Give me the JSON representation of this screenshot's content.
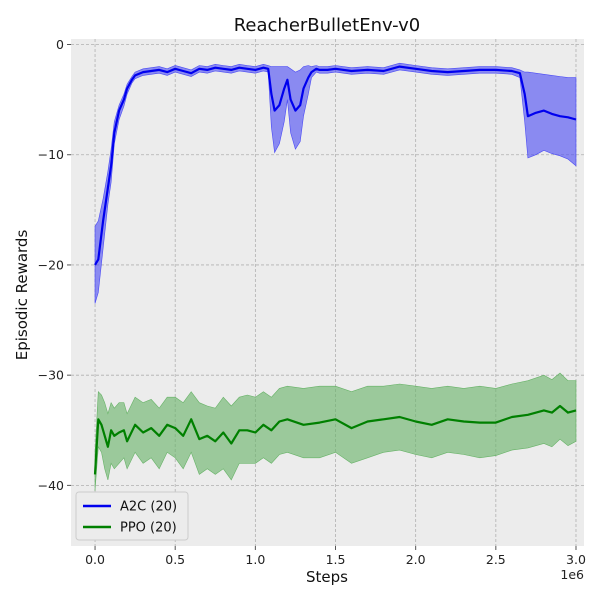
{
  "chart_data": {
    "type": "line",
    "title": "ReacherBulletEnv-v0",
    "xlabel": "Steps",
    "ylabel": "Episodic Rewards",
    "x_multiplier_label": "1e6",
    "xlim": [
      -0.15,
      3.05
    ],
    "ylim": [
      -45.5,
      0.5
    ],
    "x_ticks": [
      0.0,
      0.5,
      1.0,
      1.5,
      2.0,
      2.5,
      3.0
    ],
    "x_tick_labels": [
      "0.0",
      "0.5",
      "1.0",
      "1.5",
      "2.0",
      "2.5",
      "3.0"
    ],
    "y_ticks": [
      0,
      -10,
      -20,
      -30,
      -40
    ],
    "y_tick_labels": [
      "0",
      "−10",
      "−20",
      "−30",
      "−40"
    ],
    "grid": true,
    "legend_position": "lower-left",
    "colors": {
      "background": "#ececec",
      "grid": "#b0b0b0"
    },
    "series": [
      {
        "name": "A2C (20)",
        "color": "#0000ee",
        "fill_color": "#4a4af5",
        "x": [
          0.0,
          0.02,
          0.05,
          0.08,
          0.1,
          0.12,
          0.15,
          0.18,
          0.2,
          0.23,
          0.25,
          0.3,
          0.35,
          0.4,
          0.45,
          0.5,
          0.55,
          0.6,
          0.65,
          0.7,
          0.75,
          0.8,
          0.85,
          0.9,
          0.95,
          1.0,
          1.05,
          1.08,
          1.1,
          1.12,
          1.15,
          1.18,
          1.2,
          1.22,
          1.25,
          1.28,
          1.3,
          1.33,
          1.35,
          1.38,
          1.4,
          1.45,
          1.5,
          1.6,
          1.7,
          1.8,
          1.9,
          2.0,
          2.1,
          2.2,
          2.3,
          2.4,
          2.5,
          2.6,
          2.65,
          2.68,
          2.7,
          2.75,
          2.8,
          2.85,
          2.9,
          2.95,
          3.0
        ],
        "y": [
          -20.0,
          -19.5,
          -16.0,
          -13.0,
          -11.0,
          -8.0,
          -6.0,
          -5.0,
          -4.0,
          -3.2,
          -2.8,
          -2.5,
          -2.4,
          -2.3,
          -2.5,
          -2.2,
          -2.4,
          -2.6,
          -2.2,
          -2.3,
          -2.1,
          -2.2,
          -2.3,
          -2.1,
          -2.2,
          -2.3,
          -2.1,
          -2.2,
          -4.5,
          -6.0,
          -5.5,
          -4.0,
          -3.2,
          -5.0,
          -6.0,
          -5.5,
          -4.0,
          -3.0,
          -2.5,
          -2.2,
          -2.3,
          -2.3,
          -2.2,
          -2.4,
          -2.3,
          -2.4,
          -2.0,
          -2.2,
          -2.4,
          -2.5,
          -2.4,
          -2.3,
          -2.3,
          -2.4,
          -2.6,
          -4.5,
          -6.5,
          -6.2,
          -6.0,
          -6.3,
          -6.5,
          -6.6,
          -6.8
        ],
        "upper": [
          -16.5,
          -16.0,
          -14.0,
          -11.5,
          -9.5,
          -7.0,
          -5.5,
          -4.5,
          -3.6,
          -2.9,
          -2.5,
          -2.2,
          -2.1,
          -2.0,
          -2.2,
          -1.9,
          -2.1,
          -2.3,
          -1.9,
          -2.0,
          -1.8,
          -1.9,
          -2.0,
          -1.8,
          -1.9,
          -2.0,
          -1.8,
          -1.9,
          -2.0,
          -2.0,
          -2.0,
          -2.0,
          -2.0,
          -2.2,
          -2.5,
          -2.3,
          -2.0,
          -1.9,
          -2.0,
          -1.9,
          -2.0,
          -2.0,
          -1.9,
          -2.1,
          -2.0,
          -2.1,
          -1.7,
          -1.9,
          -2.1,
          -2.2,
          -2.1,
          -2.0,
          -2.0,
          -2.1,
          -2.3,
          -2.5,
          -2.5,
          -2.6,
          -2.7,
          -2.8,
          -2.9,
          -3.0,
          -3.0
        ],
        "lower": [
          -23.5,
          -22.5,
          -18.5,
          -14.5,
          -12.5,
          -9.0,
          -6.8,
          -5.6,
          -4.5,
          -3.5,
          -3.1,
          -2.8,
          -2.7,
          -2.6,
          -2.8,
          -2.5,
          -2.7,
          -2.9,
          -2.5,
          -2.6,
          -2.4,
          -2.5,
          -2.6,
          -2.4,
          -2.5,
          -2.6,
          -2.4,
          -2.5,
          -7.5,
          -9.8,
          -9.0,
          -7.0,
          -5.0,
          -8.0,
          -9.5,
          -8.8,
          -6.5,
          -4.5,
          -3.0,
          -2.5,
          -2.6,
          -2.6,
          -2.5,
          -2.7,
          -2.6,
          -2.7,
          -2.3,
          -2.5,
          -2.7,
          -2.8,
          -2.7,
          -2.6,
          -2.6,
          -2.7,
          -3.0,
          -7.0,
          -10.3,
          -10.0,
          -9.6,
          -9.9,
          -10.1,
          -10.4,
          -11.0
        ]
      },
      {
        "name": "PPO (20)",
        "color": "#008000",
        "fill_color": "#66b266",
        "x": [
          0.0,
          0.02,
          0.04,
          0.06,
          0.08,
          0.1,
          0.12,
          0.15,
          0.18,
          0.2,
          0.25,
          0.3,
          0.35,
          0.4,
          0.45,
          0.5,
          0.55,
          0.6,
          0.65,
          0.7,
          0.75,
          0.8,
          0.85,
          0.9,
          0.95,
          1.0,
          1.05,
          1.1,
          1.15,
          1.2,
          1.3,
          1.4,
          1.5,
          1.6,
          1.7,
          1.8,
          1.9,
          2.0,
          2.1,
          2.2,
          2.3,
          2.4,
          2.5,
          2.6,
          2.7,
          2.8,
          2.85,
          2.9,
          2.95,
          3.0
        ],
        "y": [
          -39.0,
          -34.0,
          -34.5,
          -35.5,
          -36.5,
          -35.0,
          -35.5,
          -35.2,
          -35.0,
          -36.0,
          -34.5,
          -35.2,
          -34.8,
          -35.5,
          -34.5,
          -34.8,
          -35.5,
          -34.0,
          -35.8,
          -35.5,
          -36.0,
          -35.2,
          -36.2,
          -35.0,
          -35.0,
          -35.2,
          -34.5,
          -35.0,
          -34.2,
          -34.0,
          -34.5,
          -34.3,
          -34.0,
          -34.8,
          -34.2,
          -34.0,
          -33.8,
          -34.2,
          -34.5,
          -34.0,
          -34.2,
          -34.3,
          -34.3,
          -33.8,
          -33.6,
          -33.2,
          -33.4,
          -32.8,
          -33.4,
          -33.2
        ],
        "upper": [
          -37.0,
          -31.5,
          -31.8,
          -32.5,
          -33.5,
          -32.5,
          -33.0,
          -32.5,
          -32.5,
          -33.5,
          -32.0,
          -32.5,
          -32.2,
          -33.0,
          -32.0,
          -32.0,
          -32.5,
          -31.5,
          -32.5,
          -32.8,
          -33.0,
          -32.0,
          -32.8,
          -32.0,
          -31.8,
          -32.0,
          -31.5,
          -32.0,
          -31.2,
          -31.0,
          -31.2,
          -31.0,
          -31.0,
          -31.5,
          -31.0,
          -31.0,
          -30.8,
          -31.0,
          -31.2,
          -31.0,
          -31.2,
          -31.0,
          -31.2,
          -30.8,
          -30.5,
          -30.0,
          -30.4,
          -29.8,
          -30.5,
          -30.5
        ],
        "lower": [
          -40.5,
          -36.5,
          -37.0,
          -38.5,
          -39.5,
          -38.0,
          -38.5,
          -38.0,
          -37.5,
          -38.5,
          -37.0,
          -38.0,
          -37.5,
          -38.5,
          -37.0,
          -37.5,
          -38.5,
          -37.0,
          -39.0,
          -38.5,
          -39.0,
          -38.5,
          -39.5,
          -38.0,
          -38.0,
          -38.0,
          -37.5,
          -38.0,
          -37.2,
          -37.0,
          -37.5,
          -37.5,
          -37.0,
          -38.0,
          -37.5,
          -37.0,
          -36.8,
          -37.2,
          -37.5,
          -37.0,
          -37.2,
          -37.5,
          -37.3,
          -36.8,
          -36.6,
          -36.2,
          -36.5,
          -35.8,
          -36.4,
          -36.0
        ]
      }
    ]
  }
}
